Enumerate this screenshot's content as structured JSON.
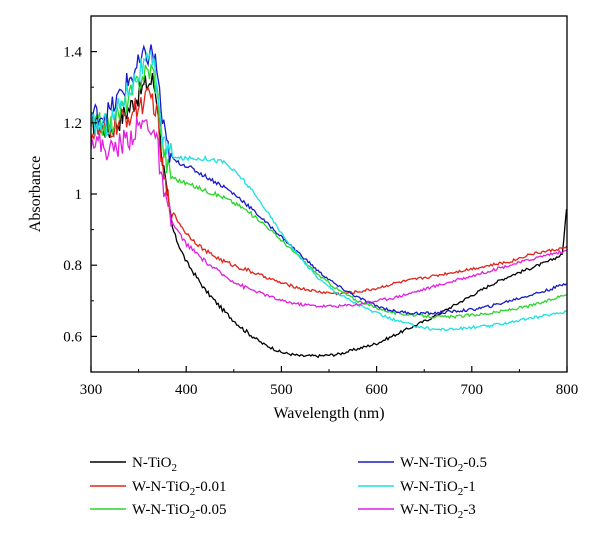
{
  "chart_data": {
    "type": "line",
    "xlabel": "Wavelength (nm)",
    "ylabel": "Absorbance",
    "xlim": [
      300,
      800
    ],
    "ylim": [
      0.5,
      1.5
    ],
    "xticks": [
      300,
      400,
      500,
      600,
      700,
      800
    ],
    "xtick_labels": [
      "300",
      "400",
      "500",
      "600",
      "700",
      "800"
    ],
    "yticks": [
      0.6,
      0.8,
      1.0,
      1.2,
      1.4
    ],
    "ytick_labels": [
      "0.6",
      "0.8",
      "1",
      "1.2",
      "1.4"
    ],
    "grid": false,
    "legend_position": "bottom",
    "series": [
      {
        "name": "N-TiO",
        "sub": "2",
        "suffix": "",
        "color": "#000000",
        "x": [
          300,
          320,
          340,
          355,
          365,
          370,
          375,
          380,
          385,
          390,
          400,
          420,
          440,
          460,
          480,
          500,
          520,
          540,
          560,
          580,
          600,
          620,
          640,
          660,
          680,
          700,
          720,
          740,
          760,
          780,
          795,
          800
        ],
        "y": [
          1.2,
          1.18,
          1.24,
          1.3,
          1.32,
          1.26,
          1.1,
          0.98,
          0.91,
          0.87,
          0.81,
          0.73,
          0.67,
          0.62,
          0.58,
          0.555,
          0.545,
          0.545,
          0.55,
          0.565,
          0.58,
          0.605,
          0.63,
          0.655,
          0.685,
          0.715,
          0.745,
          0.77,
          0.79,
          0.81,
          0.83,
          0.97
        ]
      },
      {
        "name": "W-N-TiO",
        "sub": "2",
        "suffix": "-0.01",
        "color": "#e2231a",
        "x": [
          300,
          320,
          340,
          355,
          365,
          370,
          375,
          380,
          385,
          390,
          400,
          420,
          440,
          460,
          480,
          500,
          520,
          540,
          560,
          580,
          600,
          620,
          640,
          660,
          680,
          700,
          720,
          740,
          760,
          780,
          800
        ],
        "y": [
          1.17,
          1.18,
          1.22,
          1.26,
          1.27,
          1.21,
          1.07,
          0.99,
          0.95,
          0.93,
          0.89,
          0.84,
          0.81,
          0.79,
          0.77,
          0.75,
          0.735,
          0.725,
          0.72,
          0.725,
          0.735,
          0.75,
          0.76,
          0.77,
          0.78,
          0.79,
          0.8,
          0.81,
          0.83,
          0.84,
          0.85
        ]
      },
      {
        "name": "W-N-TiO",
        "sub": "2",
        "suffix": "-0.05",
        "color": "#2bd62b",
        "x": [
          300,
          320,
          340,
          355,
          365,
          370,
          375,
          380,
          385,
          390,
          400,
          420,
          440,
          460,
          480,
          500,
          520,
          540,
          560,
          580,
          600,
          620,
          640,
          660,
          680,
          700,
          720,
          740,
          760,
          780,
          800
        ],
        "y": [
          1.2,
          1.19,
          1.27,
          1.34,
          1.35,
          1.28,
          1.14,
          1.08,
          1.05,
          1.04,
          1.03,
          1.01,
          0.99,
          0.96,
          0.92,
          0.87,
          0.82,
          0.77,
          0.73,
          0.7,
          0.68,
          0.665,
          0.66,
          0.655,
          0.655,
          0.66,
          0.665,
          0.675,
          0.685,
          0.7,
          0.72
        ]
      },
      {
        "name": "W-N-TiO",
        "sub": "2",
        "suffix": "-0.5",
        "color": "#1a1ac8",
        "x": [
          300,
          320,
          340,
          355,
          365,
          370,
          375,
          380,
          385,
          390,
          400,
          420,
          440,
          460,
          480,
          500,
          520,
          540,
          560,
          580,
          600,
          620,
          640,
          660,
          680,
          700,
          720,
          740,
          760,
          780,
          800
        ],
        "y": [
          1.22,
          1.23,
          1.32,
          1.38,
          1.4,
          1.34,
          1.2,
          1.13,
          1.1,
          1.09,
          1.08,
          1.05,
          1.02,
          0.98,
          0.93,
          0.88,
          0.83,
          0.78,
          0.74,
          0.71,
          0.685,
          0.67,
          0.665,
          0.665,
          0.67,
          0.675,
          0.685,
          0.7,
          0.715,
          0.73,
          0.75
        ]
      },
      {
        "name": "W-N-TiO",
        "sub": "2",
        "suffix": "-1",
        "color": "#1fe0e0",
        "x": [
          300,
          320,
          340,
          355,
          365,
          370,
          375,
          380,
          385,
          390,
          400,
          410,
          420,
          440,
          460,
          480,
          500,
          520,
          540,
          560,
          580,
          600,
          620,
          640,
          660,
          680,
          700,
          720,
          740,
          760,
          780,
          800
        ],
        "y": [
          1.19,
          1.2,
          1.3,
          1.36,
          1.37,
          1.3,
          1.16,
          1.12,
          1.11,
          1.1,
          1.1,
          1.1,
          1.1,
          1.09,
          1.04,
          0.97,
          0.89,
          0.82,
          0.76,
          0.72,
          0.69,
          0.665,
          0.645,
          0.63,
          0.62,
          0.62,
          0.625,
          0.63,
          0.64,
          0.65,
          0.66,
          0.67
        ]
      },
      {
        "name": "W-N-TiO",
        "sub": "2",
        "suffix": "-3",
        "color": "#e021e0",
        "x": [
          300,
          320,
          340,
          355,
          365,
          370,
          375,
          380,
          385,
          390,
          400,
          420,
          440,
          460,
          480,
          500,
          520,
          540,
          560,
          580,
          600,
          620,
          640,
          660,
          680,
          700,
          720,
          740,
          760,
          780,
          800
        ],
        "y": [
          1.16,
          1.12,
          1.16,
          1.2,
          1.19,
          1.13,
          1.02,
          0.95,
          0.92,
          0.9,
          0.86,
          0.81,
          0.77,
          0.74,
          0.72,
          0.7,
          0.69,
          0.685,
          0.685,
          0.69,
          0.7,
          0.71,
          0.725,
          0.74,
          0.755,
          0.77,
          0.785,
          0.8,
          0.815,
          0.83,
          0.84
        ]
      }
    ]
  }
}
